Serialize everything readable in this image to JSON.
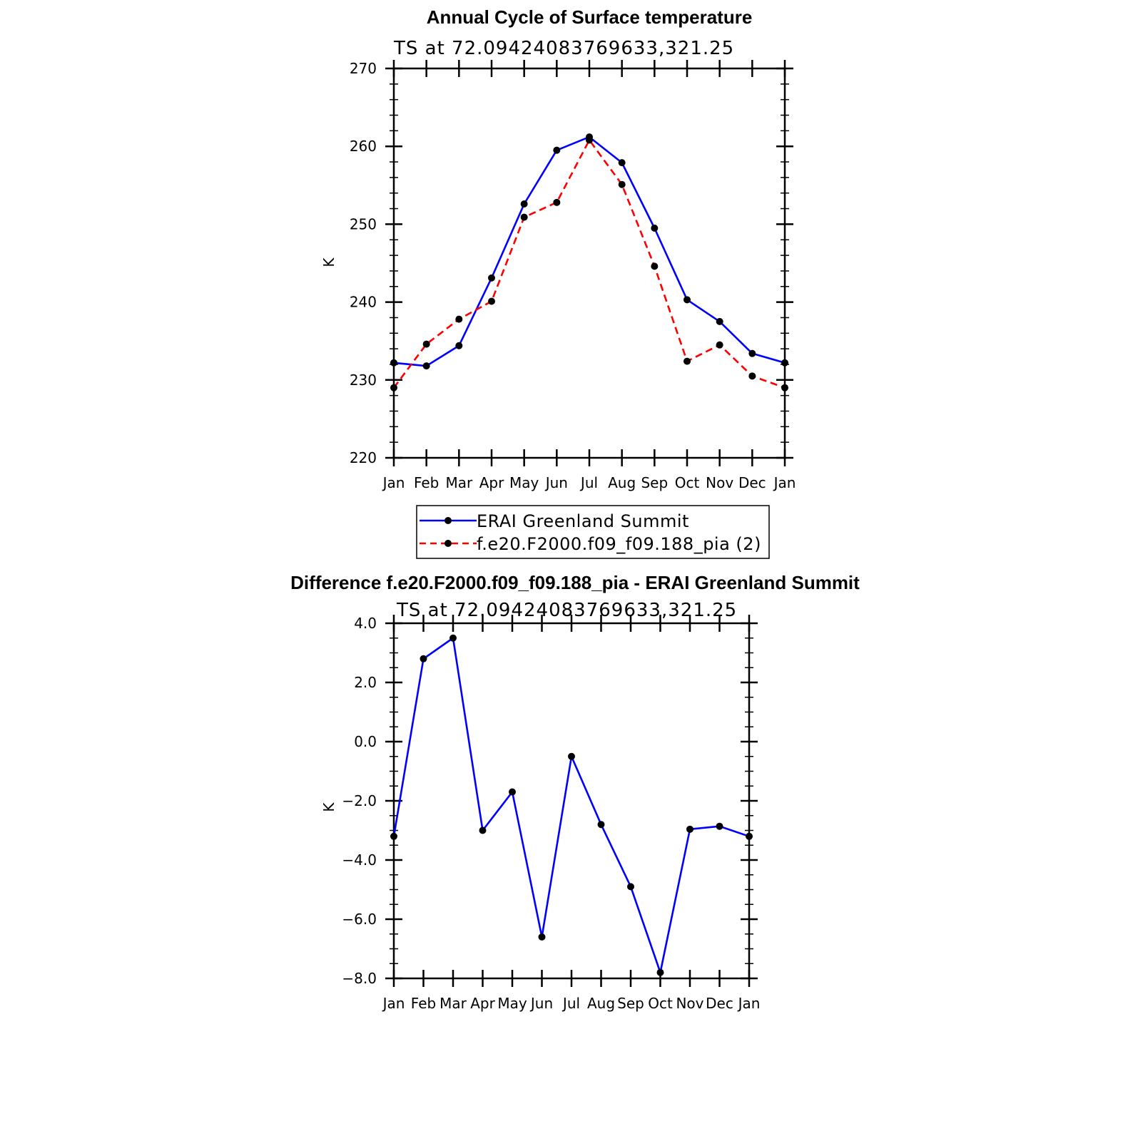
{
  "chart_data": [
    {
      "type": "line",
      "title": "Annual Cycle of Surface temperature",
      "subtitle": "TS at 72.09424083769633,321.25",
      "xlabel": "",
      "ylabel": "K",
      "ylim": [
        220,
        270
      ],
      "yticks": [
        "220",
        "230",
        "240",
        "250",
        "260",
        "270"
      ],
      "categories": [
        "Jan",
        "Feb",
        "Mar",
        "Apr",
        "May",
        "Jun",
        "Jul",
        "Aug",
        "Sep",
        "Oct",
        "Nov",
        "Dec",
        "Jan"
      ],
      "series": [
        {
          "name": "ERAI Greenland Summit",
          "color": "#0000ff",
          "dash": "solid",
          "values": [
            232.2,
            231.8,
            234.4,
            243.1,
            252.6,
            259.5,
            261.2,
            257.9,
            249.5,
            240.3,
            237.5,
            233.4,
            232.2
          ]
        },
        {
          "name": "f.e20.F2000.f09_f09.188_pia (2)",
          "color": "#ff0000",
          "dash": "dashed",
          "values": [
            229.0,
            234.6,
            237.8,
            240.1,
            250.9,
            252.8,
            260.8,
            255.1,
            244.6,
            232.4,
            234.5,
            230.5,
            229.0
          ]
        }
      ],
      "legend": "bottom"
    },
    {
      "type": "line",
      "title": "Difference f.e20.F2000.f09_f09.188_pia - ERAI Greenland Summit",
      "subtitle": "TS at 72.09424083769633,321.25",
      "xlabel": "",
      "ylabel": "K",
      "ylim": [
        -8,
        4
      ],
      "yticks": [
        "−8.0",
        "−6.0",
        "−4.0",
        "−2.0",
        "0.0",
        "2.0",
        "4.0"
      ],
      "categories": [
        "Jan",
        "Feb",
        "Mar",
        "Apr",
        "May",
        "Jun",
        "Jul",
        "Aug",
        "Sep",
        "Oct",
        "Nov",
        "Dec",
        "Jan"
      ],
      "series": [
        {
          "name": "Difference",
          "color": "#0000ff",
          "dash": "solid",
          "values": [
            -3.2,
            2.8,
            3.5,
            -3.0,
            -1.7,
            -6.6,
            -0.5,
            -2.8,
            -4.9,
            -7.8,
            -2.96,
            -2.86,
            -3.2
          ]
        }
      ]
    }
  ]
}
